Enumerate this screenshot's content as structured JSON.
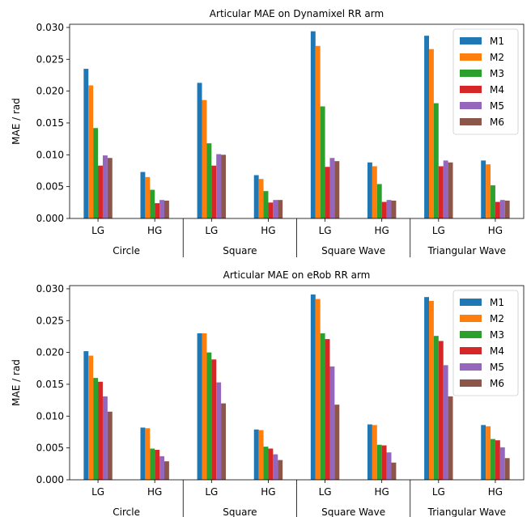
{
  "chart_data": [
    {
      "type": "bar",
      "title": "Articular MAE on Dynamixel RR arm",
      "ylabel": "MAE / rad",
      "ylim": [
        0,
        0.0305
      ],
      "yticks": [
        "0.000",
        "0.005",
        "0.010",
        "0.015",
        "0.020",
        "0.025",
        "0.030"
      ],
      "categories": [
        "LG",
        "HG",
        "LG",
        "HG",
        "LG",
        "HG",
        "LG",
        "HG"
      ],
      "groups": [
        "Circle",
        "Square",
        "Square Wave",
        "Triangular Wave"
      ],
      "legend": "top-right",
      "series": [
        {
          "name": "M1",
          "color": "#1f77b4",
          "values": [
            0.0235,
            0.0073,
            0.0213,
            0.0068,
            0.0294,
            0.0088,
            0.0287,
            0.0091
          ]
        },
        {
          "name": "M2",
          "color": "#ff7f0e",
          "values": [
            0.0209,
            0.0065,
            0.0186,
            0.0062,
            0.0271,
            0.0082,
            0.0266,
            0.0085
          ]
        },
        {
          "name": "M3",
          "color": "#2ca02c",
          "values": [
            0.0142,
            0.0045,
            0.0118,
            0.0043,
            0.0176,
            0.0054,
            0.0181,
            0.0052
          ]
        },
        {
          "name": "M4",
          "color": "#d62728",
          "values": [
            0.0083,
            0.0024,
            0.0083,
            0.0025,
            0.0081,
            0.0026,
            0.0082,
            0.0026
          ]
        },
        {
          "name": "M5",
          "color": "#9467bd",
          "values": [
            0.0099,
            0.0029,
            0.0101,
            0.0029,
            0.0095,
            0.0029,
            0.0091,
            0.0029
          ]
        },
        {
          "name": "M6",
          "color": "#8c564b",
          "values": [
            0.0095,
            0.0028,
            0.01,
            0.0029,
            0.009,
            0.0028,
            0.0088,
            0.0028
          ]
        }
      ]
    },
    {
      "type": "bar",
      "title": "Articular MAE on eRob RR arm",
      "ylabel": "MAE / rad",
      "ylim": [
        0,
        0.0305
      ],
      "yticks": [
        "0.000",
        "0.005",
        "0.010",
        "0.015",
        "0.020",
        "0.025",
        "0.030"
      ],
      "categories": [
        "LG",
        "HG",
        "LG",
        "HG",
        "LG",
        "HG",
        "LG",
        "HG"
      ],
      "groups": [
        "Circle",
        "Square",
        "Square Wave",
        "Triangular Wave"
      ],
      "legend": "top-right",
      "series": [
        {
          "name": "M1",
          "color": "#1f77b4",
          "values": [
            0.0202,
            0.0082,
            0.023,
            0.0079,
            0.0291,
            0.0087,
            0.0287,
            0.0086
          ]
        },
        {
          "name": "M2",
          "color": "#ff7f0e",
          "values": [
            0.0195,
            0.0081,
            0.023,
            0.0078,
            0.0284,
            0.0086,
            0.0281,
            0.0084
          ]
        },
        {
          "name": "M3",
          "color": "#2ca02c",
          "values": [
            0.016,
            0.0049,
            0.02,
            0.0052,
            0.023,
            0.0055,
            0.0226,
            0.0064
          ]
        },
        {
          "name": "M4",
          "color": "#d62728",
          "values": [
            0.0154,
            0.0047,
            0.0189,
            0.0049,
            0.0221,
            0.0054,
            0.0218,
            0.0062
          ]
        },
        {
          "name": "M5",
          "color": "#9467bd",
          "values": [
            0.0131,
            0.0037,
            0.0153,
            0.004,
            0.0178,
            0.0043,
            0.018,
            0.0051
          ]
        },
        {
          "name": "M6",
          "color": "#8c564b",
          "values": [
            0.0107,
            0.0029,
            0.012,
            0.0031,
            0.0118,
            0.0027,
            0.0131,
            0.0034
          ]
        }
      ]
    }
  ]
}
